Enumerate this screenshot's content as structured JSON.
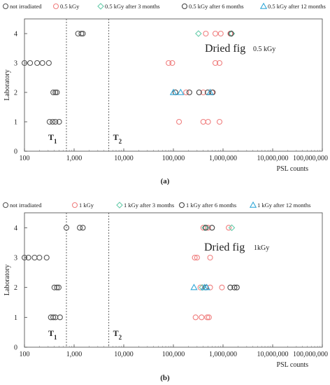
{
  "chart_data": [
    {
      "type": "scatter",
      "panel_label": "(a)",
      "annotation": "Dried fig",
      "annotation_dose": "0.5 kGy",
      "xlabel": "PSL counts",
      "ylabel": "Laboratory",
      "x_scale": "log",
      "xlim": [
        100,
        100000000
      ],
      "ylim": [
        0,
        4.5
      ],
      "x_ticks": [
        "100",
        "1,000",
        "10,000",
        "100,000",
        "1,000,000",
        "10,000,000",
        "100,000,000"
      ],
      "y_ticks": [
        "0",
        "1",
        "2",
        "3",
        "4"
      ],
      "thresholds": [
        {
          "label": "T",
          "subscript": "1",
          "x": 700
        },
        {
          "label": "T",
          "subscript": "2",
          "x": 5000
        }
      ],
      "series": [
        {
          "name": "not irradiated",
          "marker": "circle",
          "color": "#555555",
          "points": [
            [
              1200,
              4
            ],
            [
              1400,
              4
            ],
            [
              1500,
              4
            ],
            [
              100,
              3
            ],
            [
              130,
              3
            ],
            [
              180,
              3
            ],
            [
              230,
              3
            ],
            [
              310,
              3
            ],
            [
              380,
              2
            ],
            [
              420,
              2
            ],
            [
              450,
              2
            ],
            [
              320,
              1
            ],
            [
              370,
              1
            ],
            [
              420,
              1
            ],
            [
              500,
              1
            ]
          ]
        },
        {
          "name": "0.5 kGy",
          "marker": "circle",
          "color": "#f08080",
          "points": [
            [
              450000,
              4
            ],
            [
              700000,
              4
            ],
            [
              900000,
              4
            ],
            [
              1400000,
              4
            ],
            [
              80000,
              3
            ],
            [
              95000,
              3
            ],
            [
              700000,
              3
            ],
            [
              850000,
              3
            ],
            [
              180000,
              2
            ],
            [
              400000,
              2
            ],
            [
              600000,
              2
            ],
            [
              130000,
              1
            ],
            [
              400000,
              1
            ],
            [
              500000,
              1
            ],
            [
              850000,
              1
            ]
          ]
        },
        {
          "name": "0.5 kGy after 3 months",
          "marker": "diamond",
          "color": "#66ccaa",
          "points": [
            [
              320000,
              4
            ],
            [
              1500000,
              4
            ]
          ]
        },
        {
          "name": "0.5 kGy after 6 months",
          "marker": "circle",
          "color": "#444444",
          "points": [
            [
              1450000,
              4
            ],
            [
              110000,
              2
            ],
            [
              210000,
              2
            ],
            [
              330000,
              2
            ],
            [
              490000,
              2
            ],
            [
              620000,
              2
            ]
          ]
        },
        {
          "name": "0.5 kGy after 12 months",
          "marker": "triangle",
          "color": "#33a8d8",
          "points": [
            [
              100000,
              2
            ],
            [
              140000,
              2
            ],
            [
              550000,
              2
            ]
          ]
        }
      ]
    },
    {
      "type": "scatter",
      "panel_label": "(b)",
      "annotation": "Dried fig",
      "annotation_dose": "1kGy",
      "xlabel": "PSL counts",
      "ylabel": "Laboratory",
      "x_scale": "log",
      "xlim": [
        100,
        100000000
      ],
      "ylim": [
        0,
        4.5
      ],
      "x_ticks": [
        "100",
        "1,000",
        "10,000",
        "100,000",
        "1,000,000",
        "10,000,000",
        "100,000,000"
      ],
      "y_ticks": [
        "0",
        "1",
        "2",
        "3",
        "4"
      ],
      "thresholds": [
        {
          "label": "T",
          "subscript": "1",
          "x": 700
        },
        {
          "label": "T",
          "subscript": "2",
          "x": 5000
        }
      ],
      "series": [
        {
          "name": "not irradiated",
          "marker": "circle",
          "color": "#555555",
          "points": [
            [
              700,
              4
            ],
            [
              1300,
              4
            ],
            [
              1500,
              4
            ],
            [
              100,
              3
            ],
            [
              120,
              3
            ],
            [
              160,
              3
            ],
            [
              200,
              3
            ],
            [
              280,
              3
            ],
            [
              400,
              2
            ],
            [
              450,
              2
            ],
            [
              490,
              2
            ],
            [
              340,
              1
            ],
            [
              380,
              1
            ],
            [
              420,
              1
            ],
            [
              520,
              1
            ]
          ]
        },
        {
          "name": "1 kGy",
          "marker": "circle",
          "color": "#f08080",
          "points": [
            [
              400000,
              4
            ],
            [
              500000,
              4
            ],
            [
              1300000,
              4
            ],
            [
              270000,
              3
            ],
            [
              300000,
              3
            ],
            [
              550000,
              3
            ],
            [
              350000,
              2
            ],
            [
              550000,
              2
            ],
            [
              950000,
              2
            ],
            [
              280000,
              1
            ],
            [
              370000,
              1
            ],
            [
              480000,
              1
            ],
            [
              520000,
              1
            ]
          ]
        },
        {
          "name": "1 kGy after 3 months",
          "marker": "diamond",
          "color": "#66ccaa",
          "points": [
            [
              430000,
              4
            ],
            [
              1500000,
              4
            ],
            [
              380000,
              2
            ]
          ]
        },
        {
          "name": "1 kGy after 6 months",
          "marker": "circle",
          "color": "#444444",
          "points": [
            [
              450000,
              4
            ],
            [
              600000,
              4
            ],
            [
              450000,
              2
            ],
            [
              1400000,
              2
            ],
            [
              1700000,
              2
            ],
            [
              1900000,
              2
            ]
          ]
        },
        {
          "name": "1 kGy after 12 months",
          "marker": "triangle",
          "color": "#33a8d8",
          "points": [
            [
              260000,
              2
            ],
            [
              420000,
              2
            ],
            [
              470000,
              2
            ]
          ]
        }
      ]
    }
  ]
}
